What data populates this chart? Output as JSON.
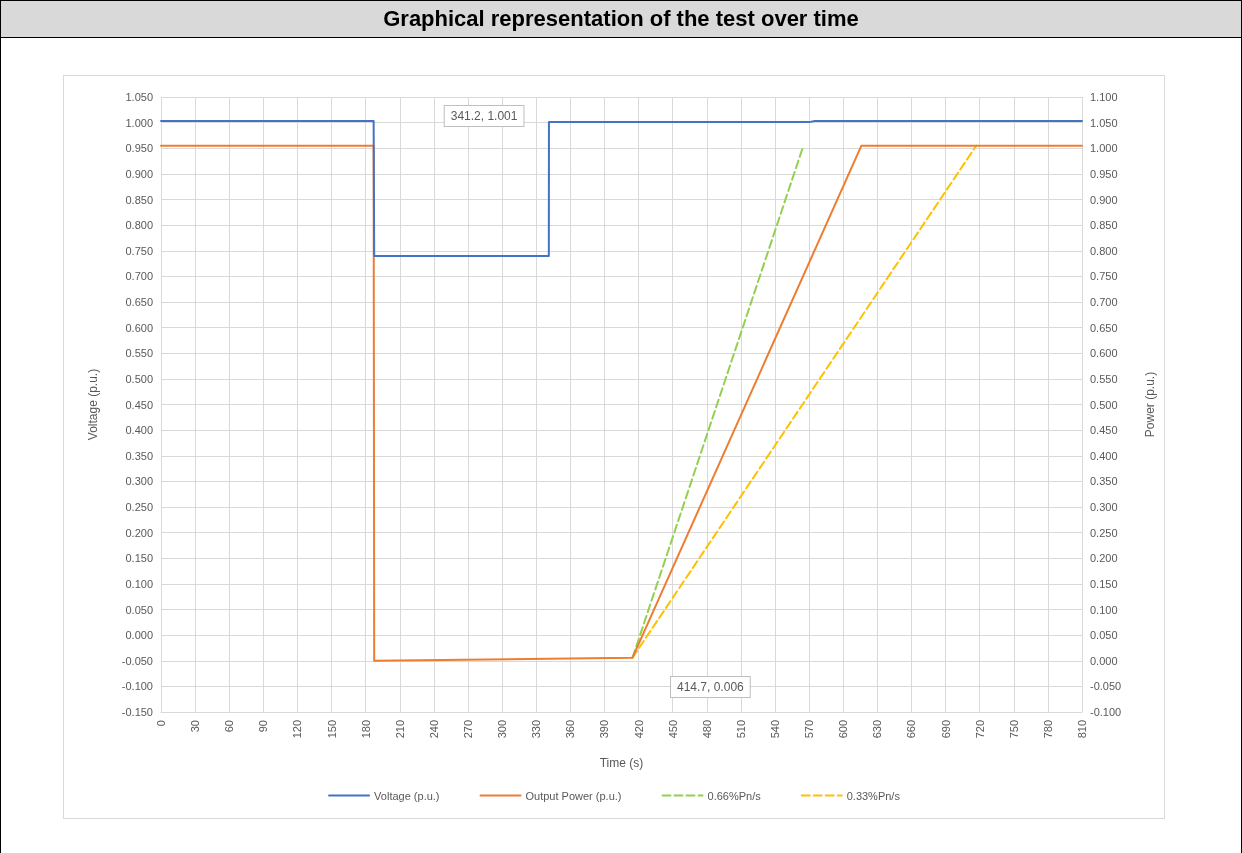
{
  "chart_data": {
    "type": "line",
    "title": "Graphical representation of the test over time",
    "xlabel": "Time (s)",
    "ylabel": "Voltage (p.u.)",
    "y2label": "Power (p.u.)",
    "xlim": [
      0,
      810
    ],
    "xticks": [
      0,
      30,
      60,
      90,
      120,
      150,
      180,
      210,
      240,
      270,
      300,
      330,
      360,
      390,
      420,
      450,
      480,
      510,
      540,
      570,
      600,
      630,
      660,
      690,
      720,
      750,
      780,
      810
    ],
    "ylim": [
      -0.15,
      1.05
    ],
    "yticks": [
      {
        "value": -0.15,
        "label": "-0.150"
      },
      {
        "value": -0.1,
        "label": "-0.100"
      },
      {
        "value": -0.05,
        "label": "-0.050"
      },
      {
        "value": 0,
        "label": "0.000"
      },
      {
        "value": 0.05,
        "label": "0.050"
      },
      {
        "value": 0.1,
        "label": "0.100"
      },
      {
        "value": 0.15,
        "label": "0.150"
      },
      {
        "value": 0.2,
        "label": "0.200"
      },
      {
        "value": 0.25,
        "label": "0.250"
      },
      {
        "value": 0.3,
        "label": "0.300"
      },
      {
        "value": 0.35,
        "label": "0.350"
      },
      {
        "value": 0.4,
        "label": "0.400"
      },
      {
        "value": 0.45,
        "label": "0.450"
      },
      {
        "value": 0.5,
        "label": "0.500"
      },
      {
        "value": 0.55,
        "label": "0.550"
      },
      {
        "value": 0.6,
        "label": "0.600"
      },
      {
        "value": 0.65,
        "label": "0.650"
      },
      {
        "value": 0.7,
        "label": "0.700"
      },
      {
        "value": 0.75,
        "label": "0.750"
      },
      {
        "value": 0.8,
        "label": "0.800"
      },
      {
        "value": 0.85,
        "label": "0.850"
      },
      {
        "value": 0.9,
        "label": "0.900"
      },
      {
        "value": 0.95,
        "label": "0.950"
      },
      {
        "value": 1,
        "label": "1.000"
      },
      {
        "value": 1.05,
        "label": "1.050"
      }
    ],
    "y2lim": [
      -0.1,
      1.1
    ],
    "y2ticks": [
      {
        "value": -0.1,
        "label": "-0.100"
      },
      {
        "value": -0.05,
        "label": "-0.050"
      },
      {
        "value": 0,
        "label": "0.000"
      },
      {
        "value": 0.05,
        "label": "0.050"
      },
      {
        "value": 0.1,
        "label": "0.100"
      },
      {
        "value": 0.15,
        "label": "0.150"
      },
      {
        "value": 0.2,
        "label": "0.200"
      },
      {
        "value": 0.25,
        "label": "0.250"
      },
      {
        "value": 0.3,
        "label": "0.300"
      },
      {
        "value": 0.35,
        "label": "0.350"
      },
      {
        "value": 0.4,
        "label": "0.400"
      },
      {
        "value": 0.45,
        "label": "0.450"
      },
      {
        "value": 0.5,
        "label": "0.500"
      },
      {
        "value": 0.55,
        "label": "0.550"
      },
      {
        "value": 0.6,
        "label": "0.600"
      },
      {
        "value": 0.65,
        "label": "0.650"
      },
      {
        "value": 0.7,
        "label": "0.700"
      },
      {
        "value": 0.75,
        "label": "0.750"
      },
      {
        "value": 0.8,
        "label": "0.800"
      },
      {
        "value": 0.85,
        "label": "0.850"
      },
      {
        "value": 0.9,
        "label": "0.900"
      },
      {
        "value": 0.95,
        "label": "0.950"
      },
      {
        "value": 1,
        "label": "1.000"
      },
      {
        "value": 1.05,
        "label": "1.050"
      },
      {
        "value": 1.1,
        "label": "1.100"
      }
    ],
    "series": [
      {
        "name": "Voltage (p.u.)",
        "color": "#4472c4",
        "line_style": "solid",
        "x": [
          0,
          187,
          187.5,
          341.1,
          341.2,
          570,
          575,
          810
        ],
        "values": [
          1.003,
          1.003,
          0.74,
          0.74,
          1.001,
          1.001,
          1.003,
          1.003
        ]
      },
      {
        "name": "Output Power (p.u.)",
        "color": "#ed7d31",
        "axis": "y2",
        "line_style": "solid",
        "x": [
          0,
          187,
          187.5,
          414.7,
          616,
          810
        ],
        "values": [
          1.005,
          1.005,
          0.0,
          0.006,
          1.005,
          1.005
        ]
      },
      {
        "name": "0.66%Pn/s",
        "color": "#92d050",
        "axis": "y2",
        "line_style": "dashed",
        "x": [
          414.7,
          565
        ],
        "values": [
          0.006,
          1.005
        ]
      },
      {
        "name": "0.33%Pn/s",
        "color": "#ffc000",
        "axis": "y2",
        "line_style": "dashed",
        "x": [
          414.7,
          717
        ],
        "values": [
          0.006,
          1.005
        ]
      }
    ],
    "annotations": [
      {
        "text": "341.2, 1.001",
        "x": 341.2,
        "y": 1.001
      },
      "414.7, 0.006"
    ],
    "grid": true,
    "legend": "bottom",
    "marker": "none"
  }
}
